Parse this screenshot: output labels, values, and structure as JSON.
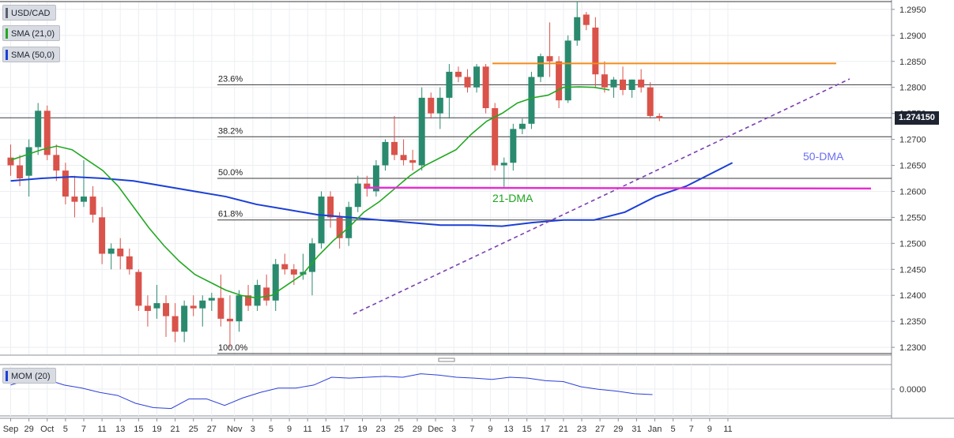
{
  "legend": {
    "symbol": "USD/CAD",
    "sma21_label": "SMA (21,0)",
    "sma50_label": "SMA (50,0)",
    "mom_label": "MOM (20)",
    "sma21_color": "#22a822",
    "sma50_color": "#1b3fd6"
  },
  "current_price": "1.274150",
  "chart_data": {
    "type": "candlestick",
    "pair": "USD/CAD",
    "ylim": [
      1.2285,
      1.2965
    ],
    "y_ticks": [
      "1.2300",
      "1.2350",
      "1.2400",
      "1.2450",
      "1.2500",
      "1.2550",
      "1.2600",
      "1.2650",
      "1.2700",
      "1.2750",
      "1.2800",
      "1.2850",
      "1.2900",
      "1.2950"
    ],
    "x_ticks": [
      {
        "label": "Sep",
        "i": 0
      },
      {
        "label": "29",
        "i": 2
      },
      {
        "label": "Oct",
        "i": 4
      },
      {
        "label": "5",
        "i": 6
      },
      {
        "label": "7",
        "i": 8
      },
      {
        "label": "11",
        "i": 10
      },
      {
        "label": "13",
        "i": 12
      },
      {
        "label": "15",
        "i": 14
      },
      {
        "label": "19",
        "i": 16
      },
      {
        "label": "21",
        "i": 18
      },
      {
        "label": "25",
        "i": 20
      },
      {
        "label": "27",
        "i": 22
      },
      {
        "label": "Nov",
        "i": 24.5
      },
      {
        "label": "3",
        "i": 26.5
      },
      {
        "label": "5",
        "i": 28.5
      },
      {
        "label": "9",
        "i": 30.5
      },
      {
        "label": "11",
        "i": 32.5
      },
      {
        "label": "15",
        "i": 34.5
      },
      {
        "label": "17",
        "i": 36.5
      },
      {
        "label": "19",
        "i": 38.5
      },
      {
        "label": "23",
        "i": 40.5
      },
      {
        "label": "25",
        "i": 42.5
      },
      {
        "label": "29",
        "i": 44.5
      },
      {
        "label": "Dec",
        "i": 46.5
      },
      {
        "label": "3",
        "i": 48.5
      },
      {
        "label": "7",
        "i": 50.5
      },
      {
        "label": "9",
        "i": 52.5
      },
      {
        "label": "13",
        "i": 54.5
      },
      {
        "label": "15",
        "i": 56.5
      },
      {
        "label": "17",
        "i": 58.5
      },
      {
        "label": "21",
        "i": 60.5
      },
      {
        "label": "23",
        "i": 62.5
      },
      {
        "label": "27",
        "i": 64.5
      },
      {
        "label": "29",
        "i": 66.5
      },
      {
        "label": "31",
        "i": 68.5
      },
      {
        "label": "Jan",
        "i": 70.5
      },
      {
        "label": "5",
        "i": 72.5
      },
      {
        "label": "7",
        "i": 74.5
      },
      {
        "label": "9",
        "i": 76.5
      },
      {
        "label": "11",
        "i": 78.5
      }
    ],
    "candles": [
      [
        1.2665,
        1.269,
        1.263,
        1.265
      ],
      [
        1.265,
        1.267,
        1.261,
        1.2625
      ],
      [
        1.263,
        1.27,
        1.259,
        1.2685
      ],
      [
        1.2685,
        1.277,
        1.267,
        1.2755
      ],
      [
        1.2755,
        1.2765,
        1.266,
        1.267
      ],
      [
        1.267,
        1.269,
        1.262,
        1.264
      ],
      [
        1.264,
        1.2655,
        1.2575,
        1.259
      ],
      [
        1.259,
        1.263,
        1.255,
        1.258
      ],
      [
        1.258,
        1.266,
        1.257,
        1.259
      ],
      [
        1.259,
        1.261,
        1.254,
        1.2555
      ],
      [
        1.255,
        1.257,
        1.246,
        1.248
      ],
      [
        1.248,
        1.25,
        1.245,
        1.249
      ],
      [
        1.249,
        1.251,
        1.245,
        1.2475
      ],
      [
        1.2475,
        1.249,
        1.244,
        1.245
      ],
      [
        1.2445,
        1.245,
        1.237,
        1.238
      ],
      [
        1.238,
        1.24,
        1.234,
        1.237
      ],
      [
        1.2375,
        1.242,
        1.2355,
        1.2385
      ],
      [
        1.2385,
        1.24,
        1.232,
        1.236
      ],
      [
        1.236,
        1.2385,
        1.231,
        1.233
      ],
      [
        1.233,
        1.239,
        1.231,
        1.238
      ],
      [
        1.238,
        1.24,
        1.236,
        1.2375
      ],
      [
        1.2375,
        1.24,
        1.234,
        1.239
      ],
      [
        1.239,
        1.2405,
        1.237,
        1.2395
      ],
      [
        1.2395,
        1.244,
        1.234,
        1.2355
      ],
      [
        1.2355,
        1.24,
        1.23,
        1.235
      ],
      [
        1.235,
        1.241,
        1.233,
        1.24
      ],
      [
        1.24,
        1.242,
        1.237,
        1.238
      ],
      [
        1.238,
        1.243,
        1.237,
        1.242
      ],
      [
        1.2415,
        1.244,
        1.238,
        1.239
      ],
      [
        1.239,
        1.247,
        1.237,
        1.246
      ],
      [
        1.246,
        1.248,
        1.244,
        1.245
      ],
      [
        1.245,
        1.246,
        1.242,
        1.244
      ],
      [
        1.244,
        1.248,
        1.243,
        1.2445
      ],
      [
        1.2445,
        1.251,
        1.24,
        1.25
      ],
      [
        1.25,
        1.26,
        1.249,
        1.259
      ],
      [
        1.259,
        1.26,
        1.253,
        1.255
      ],
      [
        1.255,
        1.256,
        1.249,
        1.251
      ],
      [
        1.251,
        1.258,
        1.2495,
        1.257
      ],
      [
        1.257,
        1.263,
        1.256,
        1.2615
      ],
      [
        1.2615,
        1.263,
        1.259,
        1.2605
      ],
      [
        1.26,
        1.266,
        1.259,
        1.265
      ],
      [
        1.265,
        1.27,
        1.264,
        1.2695
      ],
      [
        1.2695,
        1.2745,
        1.266,
        1.267
      ],
      [
        1.267,
        1.27,
        1.265,
        1.266
      ],
      [
        1.266,
        1.268,
        1.264,
        1.2655
      ],
      [
        1.265,
        1.28,
        1.264,
        1.278
      ],
      [
        1.278,
        1.279,
        1.274,
        1.275
      ],
      [
        1.275,
        1.28,
        1.272,
        1.278
      ],
      [
        1.278,
        1.2845,
        1.274,
        1.283
      ],
      [
        1.283,
        1.284,
        1.281,
        1.282
      ],
      [
        1.282,
        1.2835,
        1.279,
        1.28
      ],
      [
        1.28,
        1.2845,
        1.279,
        1.284
      ],
      [
        1.284,
        1.2845,
        1.275,
        1.276
      ],
      [
        1.276,
        1.277,
        1.264,
        1.265
      ],
      [
        1.265,
        1.2665,
        1.2605,
        1.2655
      ],
      [
        1.2655,
        1.273,
        1.264,
        1.272
      ],
      [
        1.272,
        1.274,
        1.271,
        1.273
      ],
      [
        1.273,
        1.283,
        1.272,
        1.282
      ],
      [
        1.282,
        1.2865,
        1.281,
        1.286
      ],
      [
        1.286,
        1.2925,
        1.282,
        1.285
      ],
      [
        1.285,
        1.286,
        1.276,
        1.2775
      ],
      [
        1.2775,
        1.29,
        1.277,
        1.289
      ],
      [
        1.289,
        1.2965,
        1.288,
        1.2935
      ],
      [
        1.294,
        1.2945,
        1.291,
        1.292
      ],
      [
        1.2915,
        1.2935,
        1.28,
        1.2825
      ],
      [
        1.2825,
        1.285,
        1.279,
        1.28
      ],
      [
        1.28,
        1.282,
        1.278,
        1.2815
      ],
      [
        1.2815,
        1.284,
        1.2785,
        1.2795
      ],
      [
        1.2795,
        1.2815,
        1.278,
        1.2815
      ],
      [
        1.2815,
        1.2835,
        1.279,
        1.28
      ],
      [
        1.28,
        1.281,
        1.274,
        1.2745
      ],
      [
        1.2745,
        1.275,
        1.2735,
        1.2741
      ]
    ],
    "sma21": [
      [
        0,
        1.266
      ],
      [
        2,
        1.267
      ],
      [
        4,
        1.268
      ],
      [
        6,
        1.2687
      ],
      [
        8,
        1.268
      ],
      [
        10,
        1.266
      ],
      [
        12,
        1.264
      ],
      [
        14,
        1.261
      ],
      [
        16,
        1.257
      ],
      [
        18,
        1.253
      ],
      [
        20,
        1.2495
      ],
      [
        22,
        1.2465
      ],
      [
        24,
        1.244
      ],
      [
        26,
        1.2425
      ],
      [
        28,
        1.241
      ],
      [
        30,
        1.24
      ],
      [
        32,
        1.2395
      ],
      [
        34,
        1.24
      ],
      [
        36,
        1.242
      ],
      [
        38,
        1.244
      ],
      [
        40,
        1.2475
      ],
      [
        42,
        1.2505
      ],
      [
        44,
        1.253
      ],
      [
        46,
        1.256
      ],
      [
        48,
        1.258
      ],
      [
        50,
        1.2605
      ],
      [
        52,
        1.263
      ],
      [
        54,
        1.265
      ],
      [
        56,
        1.2665
      ],
      [
        58,
        1.268
      ],
      [
        60,
        1.271
      ],
      [
        62,
        1.2735
      ],
      [
        64,
        1.275
      ],
      [
        66,
        1.277
      ],
      [
        68,
        1.278
      ],
      [
        70,
        1.2785
      ],
      [
        72,
        1.28
      ],
      [
        74,
        1.2801
      ],
      [
        76,
        1.28
      ],
      [
        78,
        1.2795
      ]
    ],
    "sma50": [
      [
        0,
        1.262
      ],
      [
        4,
        1.2625
      ],
      [
        8,
        1.2628
      ],
      [
        12,
        1.2625
      ],
      [
        16,
        1.262
      ],
      [
        20,
        1.261
      ],
      [
        24,
        1.26
      ],
      [
        28,
        1.259
      ],
      [
        32,
        1.2575
      ],
      [
        36,
        1.2565
      ],
      [
        40,
        1.2555
      ],
      [
        44,
        1.255
      ],
      [
        48,
        1.2545
      ],
      [
        52,
        1.254
      ],
      [
        56,
        1.2535
      ],
      [
        60,
        1.2535
      ],
      [
        64,
        1.2533
      ],
      [
        68,
        1.254
      ],
      [
        72,
        1.2545
      ],
      [
        76,
        1.2545
      ],
      [
        80,
        1.256
      ],
      [
        84,
        1.259
      ],
      [
        88,
        1.261
      ],
      [
        92,
        1.264
      ],
      [
        94,
        1.2655
      ]
    ],
    "fib_levels": [
      {
        "label": "23.6%",
        "value": 1.2805
      },
      {
        "label": "38.2%",
        "value": 1.2705
      },
      {
        "label": "50.0%",
        "value": 1.2625
      },
      {
        "label": "61.8%",
        "value": 1.2545
      },
      {
        "label": "100.0%",
        "value": 1.2288
      }
    ],
    "annotations": {
      "sma21_label": "21-DMA",
      "sma50_label": "50-DMA",
      "resistance": 1.2846,
      "support": 1.2607
    },
    "momentum": {
      "label": "MOM (20)",
      "y_tick": "0.0000",
      "values": [
        [
          0,
          0.62
        ],
        [
          2,
          0.75
        ],
        [
          4,
          0.75
        ],
        [
          6,
          0.62
        ],
        [
          8,
          0.55
        ],
        [
          10,
          0.45
        ],
        [
          12,
          0.38
        ],
        [
          14,
          0.2
        ],
        [
          16,
          0.1
        ],
        [
          18,
          0.08
        ],
        [
          20,
          0.3
        ],
        [
          22,
          0.3
        ],
        [
          24,
          0.15
        ],
        [
          26,
          0.32
        ],
        [
          28,
          0.45
        ],
        [
          30,
          0.55
        ],
        [
          32,
          0.55
        ],
        [
          34,
          0.62
        ],
        [
          36,
          0.8
        ],
        [
          38,
          0.78
        ],
        [
          40,
          0.8
        ],
        [
          42,
          0.82
        ],
        [
          44,
          0.8
        ],
        [
          46,
          0.88
        ],
        [
          48,
          0.85
        ],
        [
          50,
          0.8
        ],
        [
          52,
          0.78
        ],
        [
          54,
          0.75
        ],
        [
          56,
          0.8
        ],
        [
          58,
          0.78
        ],
        [
          60,
          0.72
        ],
        [
          62,
          0.7
        ],
        [
          64,
          0.58
        ],
        [
          66,
          0.52
        ],
        [
          68,
          0.48
        ],
        [
          70,
          0.42
        ],
        [
          72,
          0.4
        ]
      ]
    }
  }
}
